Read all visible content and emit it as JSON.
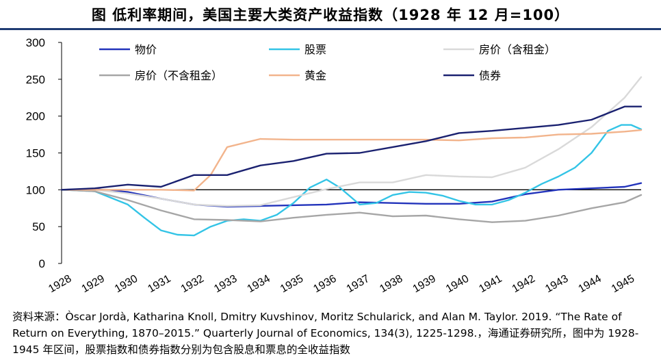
{
  "header": {
    "title": "图 低利率期间，美国主要大类资产收益指数（1928 年 12 月=100）"
  },
  "colors": {
    "title_rule": "#1f3b73"
  },
  "chart_data": {
    "type": "line",
    "title": "图 低利率期间，美国主要大类资产收益指数（1928 年 12 月=100）",
    "xlabel": "",
    "ylabel": "",
    "x": [
      1928,
      1929,
      1930,
      1931,
      1932,
      1933,
      1934,
      1935,
      1936,
      1937,
      1938,
      1939,
      1940,
      1941,
      1942,
      1943,
      1944,
      1945
    ],
    "xlim": [
      1928,
      1945.5
    ],
    "ylim": [
      0,
      300
    ],
    "yticks": [
      0,
      50,
      100,
      150,
      200,
      250,
      300
    ],
    "ytick_labels": [
      "0",
      "50",
      "100",
      "150",
      "200",
      "250",
      "300"
    ],
    "xtick_labels": [
      "1928",
      "1929",
      "1930",
      "1931",
      "1932",
      "1933",
      "1934",
      "1935",
      "1936",
      "1937",
      "1938",
      "1939",
      "1940",
      "1941",
      "1942",
      "1943",
      "1944",
      "1945"
    ],
    "legend_location": "top",
    "series": [
      {
        "name": "物价",
        "color": "#2233bb",
        "points": [
          [
            1928,
            100
          ],
          [
            1929,
            101
          ],
          [
            1930,
            97
          ],
          [
            1931,
            88
          ],
          [
            1932,
            80
          ],
          [
            1933,
            77
          ],
          [
            1934,
            78
          ],
          [
            1935,
            79
          ],
          [
            1936,
            80
          ],
          [
            1937,
            83
          ],
          [
            1938,
            82
          ],
          [
            1939,
            81
          ],
          [
            1940,
            81
          ],
          [
            1941,
            84
          ],
          [
            1942,
            94
          ],
          [
            1943,
            100
          ],
          [
            1944,
            102
          ],
          [
            1945,
            104
          ],
          [
            1945.5,
            109
          ]
        ]
      },
      {
        "name": "股票",
        "color": "#33c4e6",
        "points": [
          [
            1928,
            100
          ],
          [
            1929,
            98
          ],
          [
            1930,
            80
          ],
          [
            1930.5,
            62
          ],
          [
            1931,
            45
          ],
          [
            1931.5,
            39
          ],
          [
            1932,
            38
          ],
          [
            1932.5,
            50
          ],
          [
            1933,
            58
          ],
          [
            1933.5,
            60
          ],
          [
            1934,
            58
          ],
          [
            1934.5,
            66
          ],
          [
            1935,
            82
          ],
          [
            1935.5,
            103
          ],
          [
            1936,
            114
          ],
          [
            1936.4,
            103
          ],
          [
            1937,
            80
          ],
          [
            1937.5,
            82
          ],
          [
            1938,
            93
          ],
          [
            1938.5,
            97
          ],
          [
            1939,
            96
          ],
          [
            1939.5,
            92
          ],
          [
            1940,
            85
          ],
          [
            1940.5,
            80
          ],
          [
            1941,
            80
          ],
          [
            1941.5,
            86
          ],
          [
            1942,
            96
          ],
          [
            1942.5,
            108
          ],
          [
            1943,
            118
          ],
          [
            1943.5,
            130
          ],
          [
            1944,
            150
          ],
          [
            1944.5,
            180
          ],
          [
            1944.9,
            188
          ],
          [
            1945.2,
            188
          ],
          [
            1945.5,
            182
          ]
        ]
      },
      {
        "name": "房价（含租金）",
        "color": "#d9d9d9",
        "points": [
          [
            1928,
            100
          ],
          [
            1929,
            100
          ],
          [
            1930,
            95
          ],
          [
            1931,
            88
          ],
          [
            1932,
            80
          ],
          [
            1933,
            78
          ],
          [
            1934,
            79
          ],
          [
            1935,
            90
          ],
          [
            1936,
            101
          ],
          [
            1937,
            110
          ],
          [
            1938,
            110
          ],
          [
            1939,
            120
          ],
          [
            1940,
            118
          ],
          [
            1941,
            117
          ],
          [
            1942,
            130
          ],
          [
            1943,
            155
          ],
          [
            1944,
            185
          ],
          [
            1945,
            225
          ],
          [
            1945.5,
            253
          ]
        ]
      },
      {
        "name": "房价（不含租金）",
        "color": "#a6a6a6",
        "points": [
          [
            1928,
            100
          ],
          [
            1929,
            98
          ],
          [
            1930,
            86
          ],
          [
            1931,
            72
          ],
          [
            1932,
            60
          ],
          [
            1933,
            59
          ],
          [
            1934,
            57
          ],
          [
            1935,
            62
          ],
          [
            1936,
            66
          ],
          [
            1937,
            69
          ],
          [
            1938,
            64
          ],
          [
            1939,
            65
          ],
          [
            1940,
            60
          ],
          [
            1941,
            56
          ],
          [
            1942,
            58
          ],
          [
            1943,
            65
          ],
          [
            1944,
            75
          ],
          [
            1945,
            83
          ],
          [
            1945.5,
            93
          ]
        ]
      },
      {
        "name": "黄金",
        "color": "#f2b48c",
        "points": [
          [
            1928,
            100
          ],
          [
            1929,
            100
          ],
          [
            1930,
            100
          ],
          [
            1931,
            100
          ],
          [
            1932,
            99
          ],
          [
            1932.5,
            120
          ],
          [
            1933,
            158
          ],
          [
            1934,
            169
          ],
          [
            1935,
            168
          ],
          [
            1936,
            168
          ],
          [
            1937,
            168
          ],
          [
            1938,
            168
          ],
          [
            1939,
            168
          ],
          [
            1940,
            167
          ],
          [
            1941,
            170
          ],
          [
            1942,
            171
          ],
          [
            1943,
            175
          ],
          [
            1944,
            176
          ],
          [
            1945,
            179
          ],
          [
            1945.5,
            181
          ]
        ]
      },
      {
        "name": "债券",
        "color": "#1a2170",
        "points": [
          [
            1928,
            100
          ],
          [
            1929,
            102
          ],
          [
            1930,
            107
          ],
          [
            1931,
            104
          ],
          [
            1932,
            120
          ],
          [
            1933,
            120
          ],
          [
            1934,
            133
          ],
          [
            1935,
            139
          ],
          [
            1936,
            149
          ],
          [
            1937,
            150
          ],
          [
            1938,
            158
          ],
          [
            1939,
            166
          ],
          [
            1940,
            177
          ],
          [
            1941,
            180
          ],
          [
            1942,
            184
          ],
          [
            1943,
            188
          ],
          [
            1944,
            195
          ],
          [
            1945,
            213
          ],
          [
            1945.5,
            213
          ]
        ]
      }
    ]
  },
  "source": {
    "text": "资料来源：Òscar Jordà, Katharina Knoll, Dmitry Kuvshinov, Moritz Schularick, and Alan M. Taylor. 2019. “The Rate of Return on Everything, 1870–2015.” Quarterly Journal of Economics, 134(3), 1225-1298.，海通证券研究所，图中为 1928-1945 年区间，股票指数和债券指数分别为包含股息和票息的全收益指数"
  }
}
